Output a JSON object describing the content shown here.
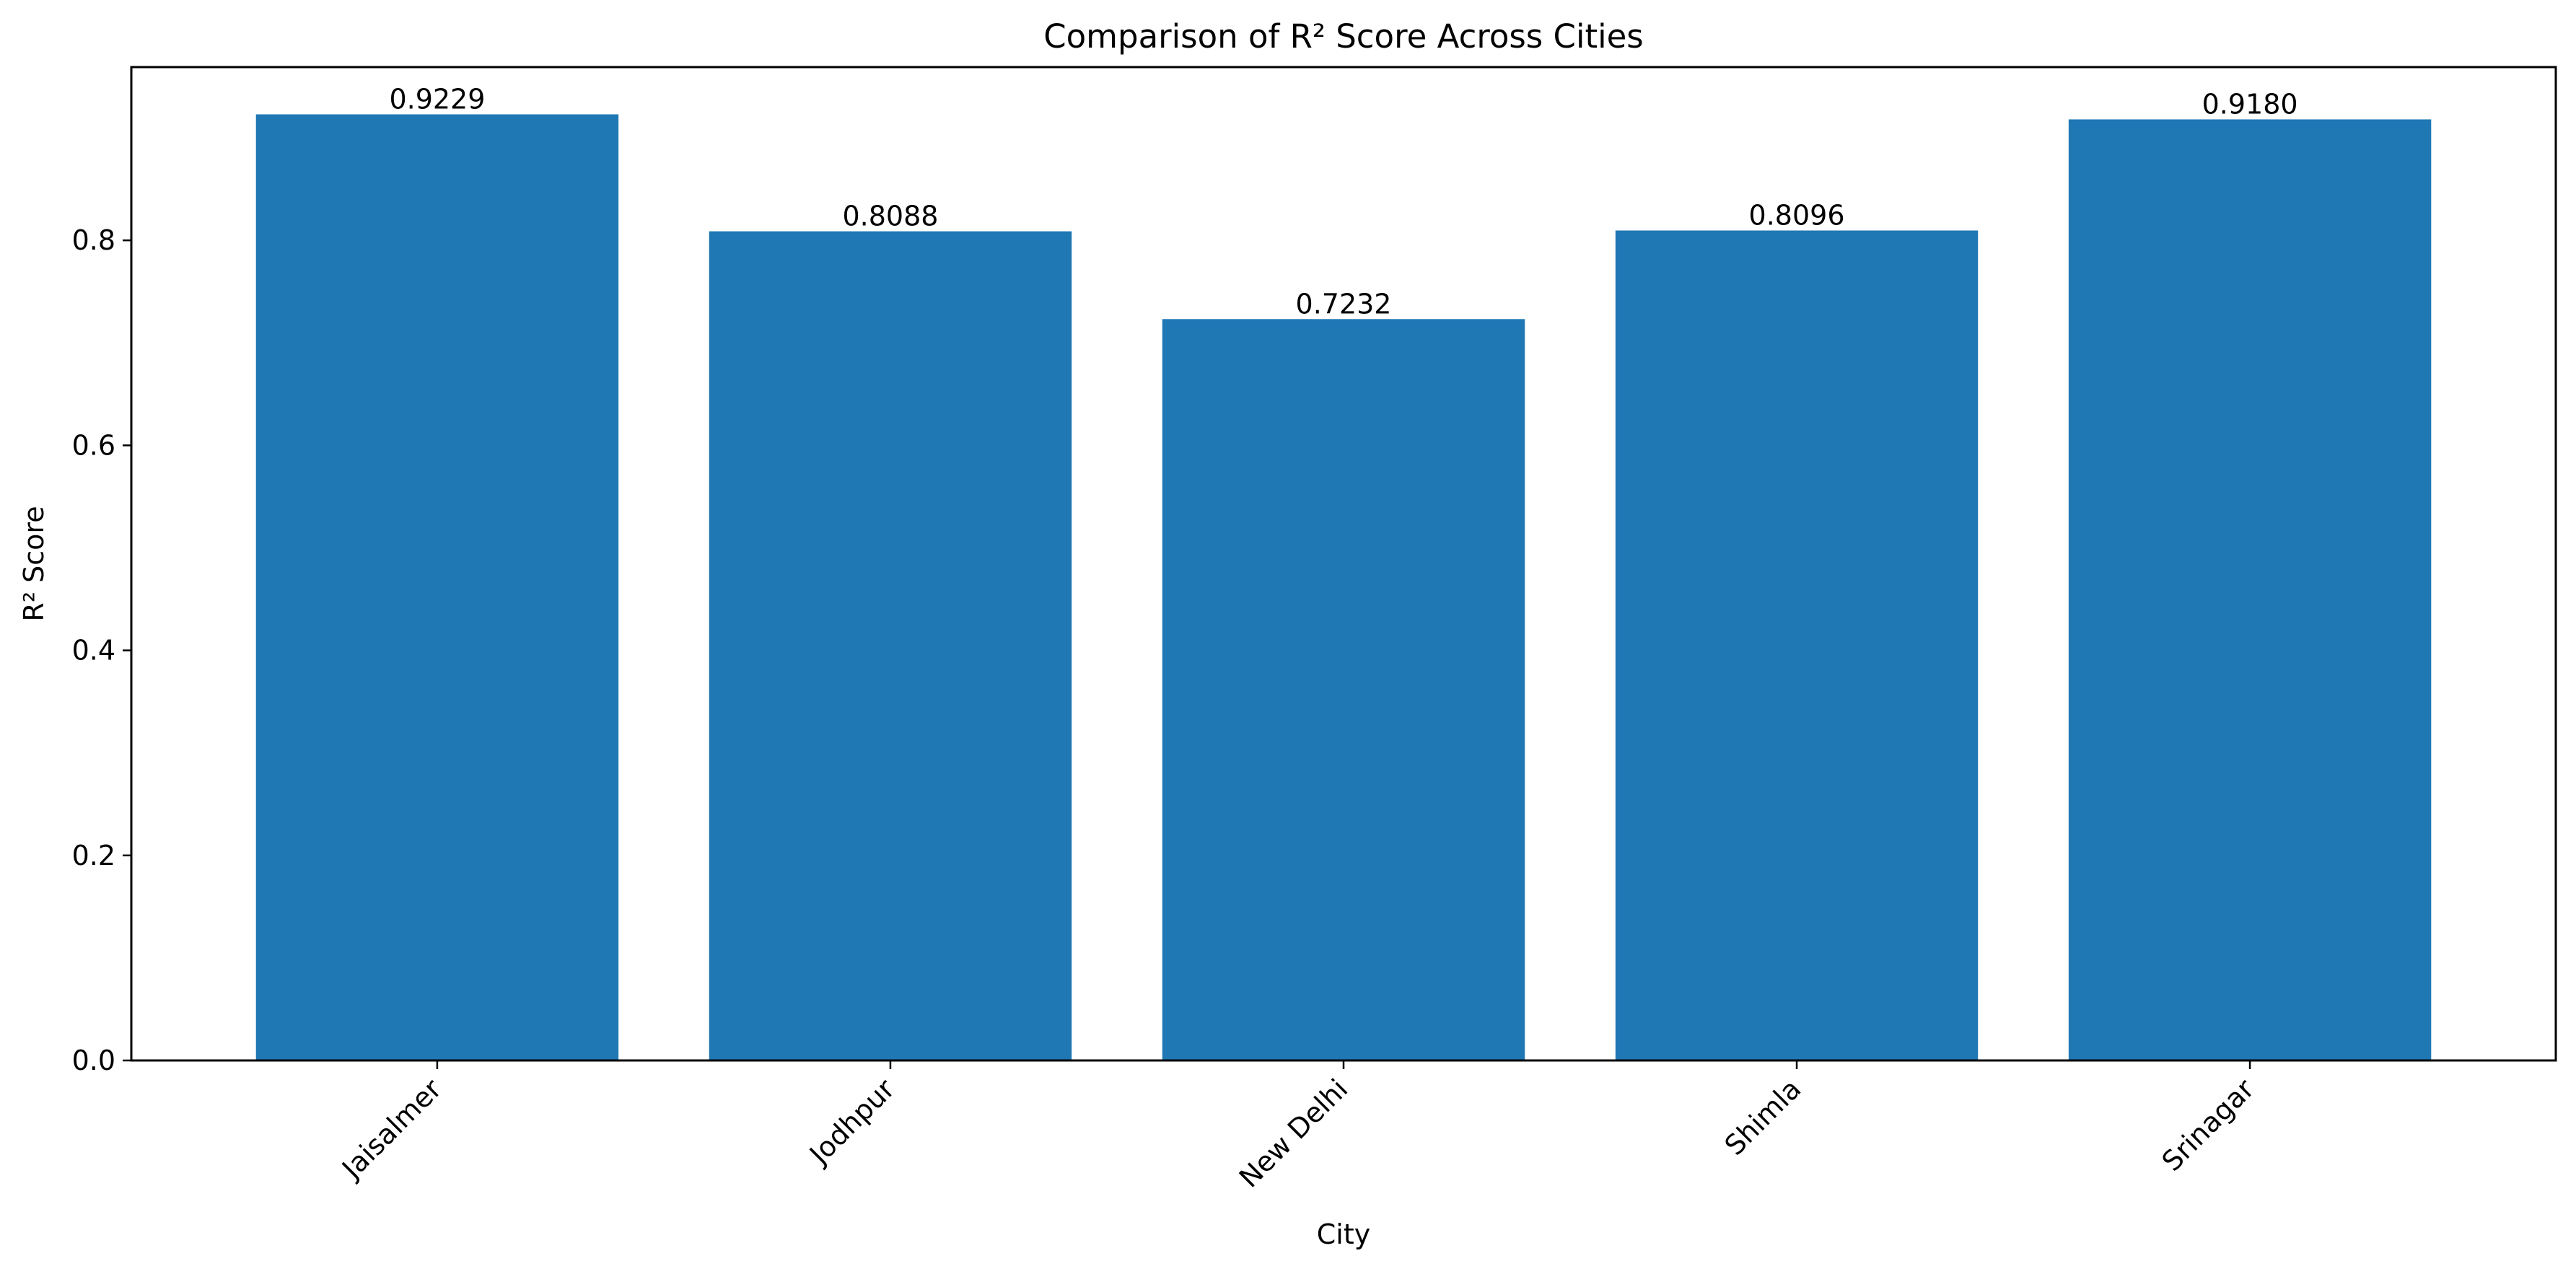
{
  "chart_data": {
    "type": "bar",
    "title": "Comparison of R² Score Across Cities",
    "xlabel": "City",
    "ylabel": "R² Score",
    "categories": [
      "Jaisalmer",
      "Jodhpur",
      "New Delhi",
      "Shimla",
      "Srinagar"
    ],
    "values": [
      0.9229,
      0.8088,
      0.7232,
      0.8096,
      0.918
    ],
    "value_labels": [
      "0.9229",
      "0.8088",
      "0.7232",
      "0.8096",
      "0.9180"
    ],
    "ylim": [
      0,
      0.969
    ],
    "yticks": [
      0.0,
      0.2,
      0.4,
      0.6,
      0.8
    ],
    "ytick_labels": [
      "0.0",
      "0.2",
      "0.4",
      "0.6",
      "0.8"
    ],
    "x_tick_rotation_deg": 45,
    "grid": false,
    "legend": "none",
    "bar_color": "#1f77b4"
  }
}
